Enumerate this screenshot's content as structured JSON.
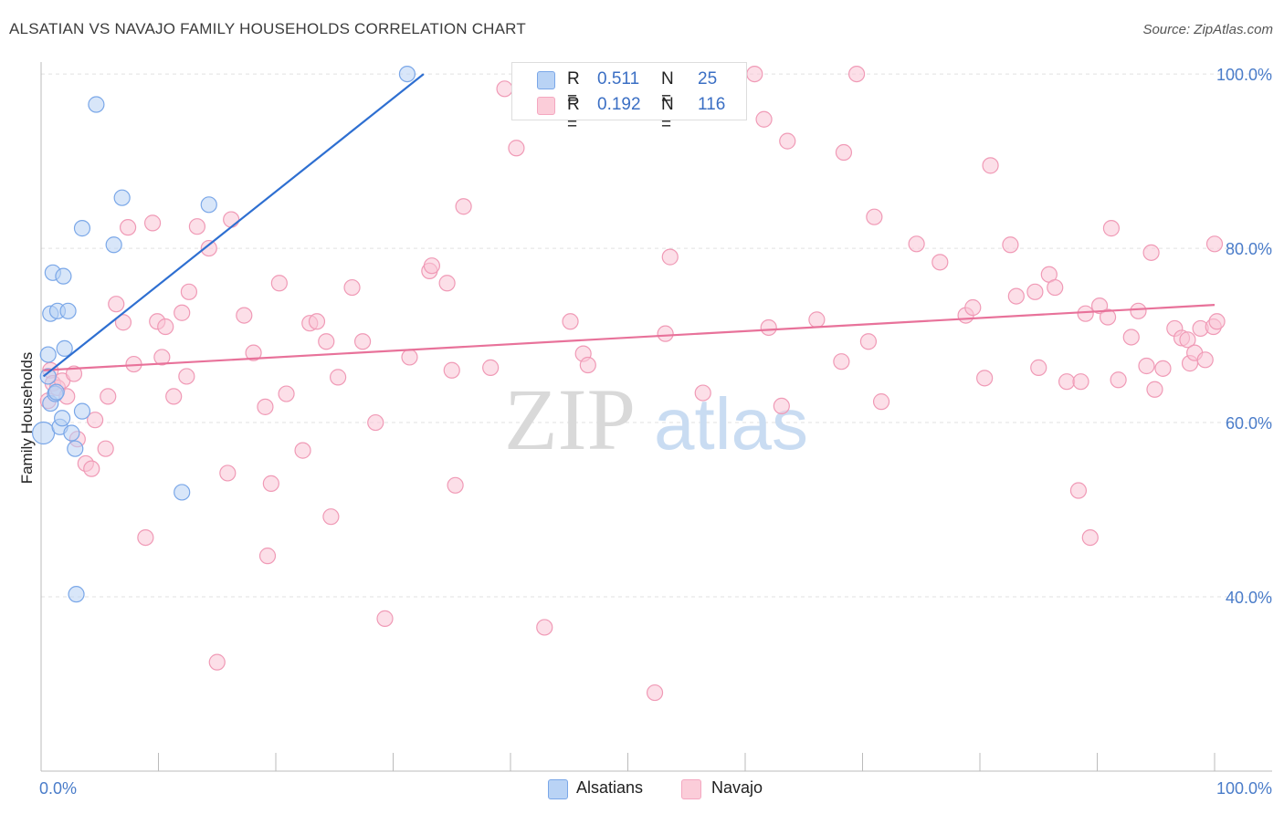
{
  "title": "ALSATIAN VS NAVAJO FAMILY HOUSEHOLDS CORRELATION CHART",
  "source": "Source: ZipAtlas.com",
  "watermark": {
    "zip": "ZIP",
    "atlas": "atlas"
  },
  "legend": {
    "alsatians": {
      "r_label": "R =",
      "r_value": "0.511",
      "n_label": "N =",
      "n_value": "25"
    },
    "navajo": {
      "r_label": "R =",
      "r_value": "0.192",
      "n_label": "N =",
      "n_value": "116"
    }
  },
  "bottom_legend": {
    "alsatians": "Alsatians",
    "navajo": "Navajo"
  },
  "chart_data": {
    "type": "scatter",
    "title": "ALSATIAN VS NAVAJO FAMILY HOUSEHOLDS CORRELATION CHART",
    "xlabel": "",
    "ylabel": "Family Households",
    "xlim": [
      0,
      100
    ],
    "ylim": [
      20,
      102
    ],
    "x_tick_labels": [
      "0.0%",
      "100.0%"
    ],
    "y_ticks": [
      40,
      60,
      80,
      100
    ],
    "y_tick_labels": [
      "40.0%",
      "60.0%",
      "80.0%",
      "100.0%"
    ],
    "colors": {
      "alsatians": "#7aa7e8",
      "alsatians_line": "#2e6fd1",
      "navajo": "#f4a7c0",
      "navajo_line": "#e8729a"
    },
    "series": [
      {
        "name": "Alsatians",
        "trend": [
          [
            0.2,
            65.3
          ],
          [
            32.6,
            100.0
          ]
        ],
        "points": [
          [
            0.2,
            58.8
          ],
          [
            0.6,
            65.3
          ],
          [
            0.6,
            67.8
          ],
          [
            0.8,
            62.2
          ],
          [
            0.8,
            72.5
          ],
          [
            1.0,
            77.2
          ],
          [
            1.2,
            63.3
          ],
          [
            1.4,
            72.8
          ],
          [
            1.6,
            59.5
          ],
          [
            1.8,
            60.5
          ],
          [
            1.9,
            76.8
          ],
          [
            2.0,
            68.5
          ],
          [
            2.3,
            72.8
          ],
          [
            2.6,
            58.8
          ],
          [
            2.9,
            57.0
          ],
          [
            3.5,
            61.3
          ],
          [
            3.5,
            82.3
          ],
          [
            4.7,
            96.5
          ],
          [
            6.2,
            80.4
          ],
          [
            6.9,
            85.8
          ],
          [
            12.0,
            52.0
          ],
          [
            14.3,
            85.0
          ],
          [
            3.0,
            40.3
          ],
          [
            31.2,
            100.0
          ],
          [
            1.3,
            63.5
          ]
        ]
      },
      {
        "name": "Navajo",
        "trend": [
          [
            0.2,
            66.0
          ],
          [
            100.0,
            73.5
          ]
        ],
        "points": [
          [
            0.8,
            66.0
          ],
          [
            1.0,
            64.5
          ],
          [
            1.4,
            64.0
          ],
          [
            1.8,
            64.8
          ],
          [
            2.2,
            63.0
          ],
          [
            2.8,
            65.6
          ],
          [
            3.1,
            58.1
          ],
          [
            3.8,
            55.3
          ],
          [
            4.3,
            54.7
          ],
          [
            4.6,
            60.3
          ],
          [
            5.5,
            57.0
          ],
          [
            5.7,
            63.0
          ],
          [
            6.4,
            73.6
          ],
          [
            7.0,
            71.5
          ],
          [
            7.4,
            82.4
          ],
          [
            7.9,
            66.7
          ],
          [
            8.9,
            46.8
          ],
          [
            9.5,
            82.9
          ],
          [
            9.9,
            71.6
          ],
          [
            10.3,
            67.5
          ],
          [
            10.6,
            71.0
          ],
          [
            11.3,
            63.0
          ],
          [
            12.0,
            72.6
          ],
          [
            12.4,
            65.3
          ],
          [
            12.6,
            75.0
          ],
          [
            13.3,
            82.5
          ],
          [
            14.3,
            80.0
          ],
          [
            15.0,
            32.5
          ],
          [
            15.9,
            54.2
          ],
          [
            16.2,
            83.3
          ],
          [
            17.3,
            72.3
          ],
          [
            18.1,
            68.0
          ],
          [
            19.1,
            61.8
          ],
          [
            19.3,
            44.7
          ],
          [
            19.6,
            53.0
          ],
          [
            20.3,
            76.0
          ],
          [
            20.9,
            63.3
          ],
          [
            22.3,
            56.8
          ],
          [
            22.9,
            71.4
          ],
          [
            23.5,
            71.6
          ],
          [
            24.3,
            69.3
          ],
          [
            24.7,
            49.2
          ],
          [
            25.3,
            65.2
          ],
          [
            26.5,
            75.5
          ],
          [
            27.4,
            69.3
          ],
          [
            28.5,
            60.0
          ],
          [
            29.3,
            37.5
          ],
          [
            31.4,
            67.5
          ],
          [
            33.1,
            77.4
          ],
          [
            33.3,
            78.0
          ],
          [
            34.6,
            76.0
          ],
          [
            35.0,
            66.0
          ],
          [
            35.3,
            52.8
          ],
          [
            36.0,
            84.8
          ],
          [
            38.3,
            66.3
          ],
          [
            39.5,
            98.3
          ],
          [
            40.5,
            91.5
          ],
          [
            40.8,
            100.0
          ],
          [
            42.9,
            36.5
          ],
          [
            45.1,
            71.6
          ],
          [
            46.2,
            67.9
          ],
          [
            46.6,
            66.6
          ],
          [
            52.3,
            29.0
          ],
          [
            53.2,
            70.2
          ],
          [
            53.6,
            79.0
          ],
          [
            56.4,
            63.4
          ],
          [
            60.8,
            100.0
          ],
          [
            61.6,
            94.8
          ],
          [
            62.0,
            70.9
          ],
          [
            63.1,
            61.9
          ],
          [
            63.6,
            92.3
          ],
          [
            66.1,
            71.8
          ],
          [
            68.2,
            67.0
          ],
          [
            68.4,
            91.0
          ],
          [
            69.5,
            100.0
          ],
          [
            70.5,
            69.3
          ],
          [
            71.0,
            83.6
          ],
          [
            71.6,
            62.4
          ],
          [
            74.6,
            80.5
          ],
          [
            76.6,
            78.4
          ],
          [
            78.8,
            72.3
          ],
          [
            79.4,
            73.2
          ],
          [
            80.4,
            65.1
          ],
          [
            80.9,
            89.5
          ],
          [
            82.6,
            80.4
          ],
          [
            83.1,
            74.5
          ],
          [
            84.7,
            75.0
          ],
          [
            85.0,
            66.3
          ],
          [
            85.9,
            77.0
          ],
          [
            86.4,
            75.5
          ],
          [
            87.4,
            64.7
          ],
          [
            88.4,
            52.2
          ],
          [
            88.6,
            64.7
          ],
          [
            89.0,
            72.5
          ],
          [
            89.4,
            46.8
          ],
          [
            90.2,
            73.4
          ],
          [
            90.9,
            72.1
          ],
          [
            91.2,
            82.3
          ],
          [
            91.8,
            64.9
          ],
          [
            92.9,
            69.8
          ],
          [
            93.5,
            72.8
          ],
          [
            94.2,
            66.5
          ],
          [
            94.6,
            79.5
          ],
          [
            94.9,
            63.8
          ],
          [
            95.6,
            66.2
          ],
          [
            96.6,
            70.8
          ],
          [
            97.2,
            69.7
          ],
          [
            97.7,
            69.5
          ],
          [
            97.9,
            66.8
          ],
          [
            98.3,
            68.0
          ],
          [
            98.8,
            70.8
          ],
          [
            99.2,
            67.2
          ],
          [
            99.9,
            71.0
          ],
          [
            100.0,
            80.5
          ],
          [
            100.2,
            71.6
          ],
          [
            0.6,
            62.5
          ]
        ]
      }
    ]
  }
}
